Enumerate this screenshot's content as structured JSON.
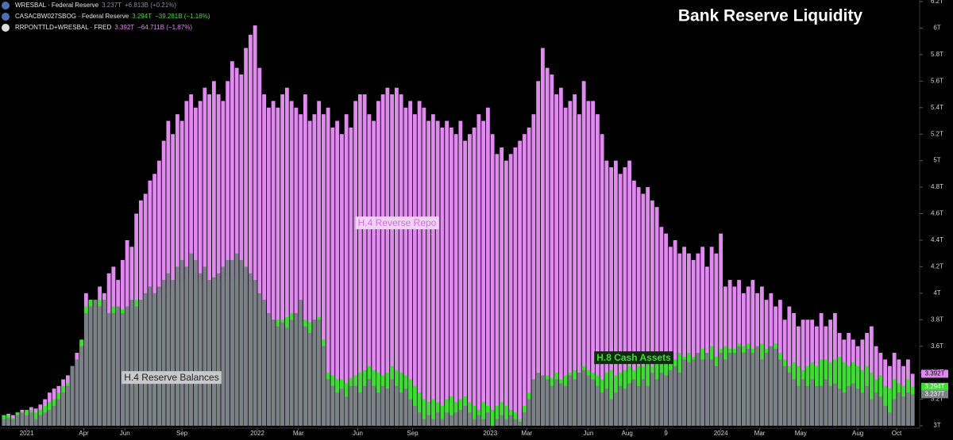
{
  "chart_data": {
    "type": "bar",
    "title": "Bank Reserve Liquidity",
    "ylim": [
      3,
      6.2
    ],
    "yticks": [
      {
        "value": 3,
        "label": "3T"
      },
      {
        "value": 3.2,
        "label": "3.2T"
      },
      {
        "value": 3.4,
        "label": "3.4T"
      },
      {
        "value": 3.6,
        "label": "3.6T"
      },
      {
        "value": 3.8,
        "label": "3.8T"
      },
      {
        "value": 4,
        "label": "4T"
      },
      {
        "value": 4.2,
        "label": "4.2T"
      },
      {
        "value": 4.4,
        "label": "4.4T"
      },
      {
        "value": 4.6,
        "label": "4.6T"
      },
      {
        "value": 4.8,
        "label": "4.8T"
      },
      {
        "value": 5,
        "label": "5T"
      },
      {
        "value": 5.2,
        "label": "5.2T"
      },
      {
        "value": 5.4,
        "label": "5.4T"
      },
      {
        "value": 5.6,
        "label": "5.6T"
      },
      {
        "value": 5.8,
        "label": "5.8T"
      },
      {
        "value": 6,
        "label": "6T"
      },
      {
        "value": 6.2,
        "label": "6.2T"
      }
    ],
    "xlim": [
      0,
      200
    ],
    "xticks": [
      {
        "value": 5.5,
        "label": "2021"
      },
      {
        "value": 18,
        "label": "Apr"
      },
      {
        "value": 27,
        "label": "Jun"
      },
      {
        "value": 39.5,
        "label": "Sep"
      },
      {
        "value": 56,
        "label": "2022"
      },
      {
        "value": 65,
        "label": "Mar"
      },
      {
        "value": 78,
        "label": "Jun"
      },
      {
        "value": 90,
        "label": "Sep"
      },
      {
        "value": 107,
        "label": "2023"
      },
      {
        "value": 115,
        "label": "Mar"
      },
      {
        "value": 128.5,
        "label": "Jun"
      },
      {
        "value": 137,
        "label": "Aug"
      },
      {
        "value": 145.5,
        "label": "9"
      },
      {
        "value": 157.5,
        "label": "2024"
      },
      {
        "value": 166,
        "label": "Mar"
      },
      {
        "value": 175,
        "label": "May"
      },
      {
        "value": 187.5,
        "label": "Aug"
      },
      {
        "value": 196,
        "label": "Oct"
      }
    ],
    "series": [
      {
        "name": "RRPONTTLD+WRESBAL · FRED",
        "legend_value": "3.392T",
        "legend_change": "−64.711B (−1.87%)",
        "label": "H.4 Reverse Repo",
        "price_tag": "3.392T",
        "color": "#e08af0",
        "values": [
          3.08,
          3.09,
          3.08,
          3.1,
          3.12,
          3.1,
          3.14,
          3.13,
          3.16,
          3.2,
          3.25,
          3.28,
          3.3,
          3.35,
          3.38,
          3.45,
          3.55,
          3.62,
          4.0,
          3.95,
          3.9,
          4.05,
          4.0,
          4.15,
          4.2,
          4.1,
          4.25,
          4.4,
          4.35,
          4.6,
          4.7,
          4.75,
          4.85,
          4.9,
          5.0,
          5.15,
          5.3,
          5.2,
          5.35,
          5.3,
          5.45,
          5.5,
          5.4,
          5.45,
          5.55,
          5.5,
          5.6,
          5.5,
          5.45,
          5.6,
          5.75,
          5.7,
          5.65,
          5.85,
          5.95,
          6.02,
          5.7,
          5.5,
          5.4,
          5.45,
          5.4,
          5.5,
          5.55,
          5.45,
          5.4,
          5.35,
          5.5,
          5.3,
          5.35,
          5.45,
          5.35,
          5.4,
          5.25,
          5.3,
          5.2,
          5.35,
          5.25,
          5.45,
          5.5,
          5.5,
          5.35,
          5.3,
          5.45,
          5.5,
          5.55,
          5.5,
          5.55,
          5.5,
          5.4,
          5.45,
          5.35,
          5.45,
          5.4,
          5.3,
          5.35,
          5.3,
          5.25,
          5.3,
          5.25,
          5.2,
          5.3,
          5.15,
          5.2,
          5.25,
          5.35,
          5.3,
          5.4,
          5.2,
          5.05,
          5.1,
          5.0,
          5.05,
          5.1,
          5.15,
          5.2,
          5.25,
          5.35,
          5.6,
          5.85,
          5.7,
          5.65,
          5.5,
          5.55,
          5.4,
          5.45,
          5.5,
          5.35,
          5.6,
          5.45,
          5.45,
          5.35,
          5.2,
          5.0,
          4.95,
          5.0,
          4.9,
          4.95,
          5.0,
          4.85,
          4.8,
          4.75,
          4.8,
          4.7,
          4.65,
          4.5,
          4.45,
          4.35,
          4.4,
          4.3,
          4.35,
          4.3,
          4.25,
          4.3,
          4.35,
          4.2,
          4.35,
          4.3,
          4.45,
          4.05,
          4.1,
          4.05,
          4.1,
          4.0,
          4.05,
          4.1,
          4.0,
          4.05,
          3.95,
          4.0,
          3.9,
          3.95,
          3.8,
          3.9,
          3.85,
          3.75,
          3.8,
          3.8,
          3.8,
          3.75,
          3.85,
          3.75,
          3.8,
          3.85,
          3.7,
          3.65,
          3.7,
          3.65,
          3.6,
          3.65,
          3.7,
          3.75,
          3.6,
          3.55,
          3.5,
          3.45,
          3.55,
          3.5,
          3.45,
          3.5,
          3.392
        ]
      },
      {
        "name": "CASACBW027SBOG · Federal Reserve",
        "legend_value": "3.294T",
        "legend_change": "−39.281B (−1.18%)",
        "label": "H.8 Cash Assets",
        "price_tag": "3.294T",
        "color": "#3fdc34",
        "values": [
          3.08,
          3.08,
          3.06,
          3.1,
          3.1,
          3.12,
          3.12,
          3.1,
          3.12,
          3.15,
          3.18,
          3.2,
          3.25,
          3.3,
          3.32,
          3.4,
          3.5,
          3.65,
          3.9,
          3.95,
          3.95,
          3.95,
          3.9,
          3.85,
          3.9,
          3.9,
          3.88,
          3.9,
          3.92,
          3.95,
          3.95,
          3.98,
          4.0,
          4.0,
          4.0,
          4.02,
          4.05,
          4.0,
          4.05,
          4.1,
          4.1,
          4.12,
          4.1,
          4.08,
          4.1,
          4.05,
          4.1,
          4.1,
          4.08,
          4.12,
          4.1,
          4.12,
          4.1,
          4.08,
          4.05,
          4.0,
          3.98,
          3.9,
          3.82,
          3.8,
          3.8,
          3.8,
          3.82,
          3.85,
          3.82,
          3.85,
          3.8,
          3.78,
          3.8,
          3.82,
          3.65,
          3.4,
          3.38,
          3.35,
          3.35,
          3.32,
          3.36,
          3.38,
          3.4,
          3.42,
          3.45,
          3.42,
          3.4,
          3.38,
          3.4,
          3.45,
          3.42,
          3.4,
          3.38,
          3.35,
          3.3,
          3.25,
          3.2,
          3.18,
          3.2,
          3.18,
          3.15,
          3.2,
          3.22,
          3.18,
          3.2,
          3.22,
          3.18,
          3.15,
          3.12,
          3.18,
          3.15,
          3.12,
          3.15,
          3.18,
          3.15,
          3.12,
          3.1,
          3.05,
          3.15,
          3.25,
          3.35,
          3.38,
          3.35,
          3.38,
          3.36,
          3.4,
          3.35,
          3.38,
          3.4,
          3.42,
          3.4,
          3.45,
          3.42,
          3.4,
          3.38,
          3.35,
          3.4,
          3.42,
          3.38,
          3.4,
          3.42,
          3.45,
          3.42,
          3.45,
          3.45,
          3.48,
          3.45,
          3.5,
          3.48,
          3.5,
          3.52,
          3.5,
          3.55,
          3.52,
          3.55,
          3.52,
          3.55,
          3.58,
          3.55,
          3.6,
          3.52,
          3.58,
          3.6,
          3.58,
          3.58,
          3.62,
          3.6,
          3.62,
          3.58,
          3.6,
          3.62,
          3.58,
          3.6,
          3.62,
          3.55,
          3.5,
          3.45,
          3.48,
          3.45,
          3.42,
          3.45,
          3.48,
          3.45,
          3.5,
          3.5,
          3.48,
          3.5,
          3.52,
          3.48,
          3.45,
          3.48,
          3.45,
          3.42,
          3.45,
          3.4,
          3.35,
          3.38,
          3.3,
          3.28,
          3.35,
          3.32,
          3.3,
          3.35,
          3.294
        ]
      },
      {
        "name": "WRESBAL · Federal Reserve",
        "legend_value": "3.237T",
        "legend_change": "+6.813B (+0.21%)",
        "label": "H.4 Reserve Balances",
        "price_tag": "3.237T",
        "color": "#7d8088",
        "values": [
          3.05,
          3.06,
          3.05,
          3.08,
          3.1,
          3.08,
          3.1,
          3.05,
          3.08,
          3.1,
          3.12,
          3.15,
          3.2,
          3.25,
          3.3,
          3.45,
          3.5,
          3.6,
          3.85,
          3.9,
          3.95,
          3.9,
          3.95,
          3.85,
          3.85,
          3.9,
          3.85,
          3.9,
          3.95,
          3.9,
          3.95,
          4.0,
          4.05,
          4.0,
          4.05,
          4.1,
          4.15,
          4.1,
          4.2,
          4.25,
          4.2,
          4.3,
          4.25,
          4.15,
          4.2,
          4.1,
          4.12,
          4.15,
          4.2,
          4.25,
          4.25,
          4.3,
          4.25,
          4.2,
          4.15,
          4.1,
          4.0,
          3.95,
          3.85,
          3.8,
          3.75,
          3.78,
          3.74,
          3.8,
          3.85,
          3.95,
          3.75,
          3.7,
          3.8,
          3.8,
          3.6,
          3.35,
          3.3,
          3.25,
          3.28,
          3.22,
          3.3,
          3.3,
          3.25,
          3.3,
          3.35,
          3.3,
          3.25,
          3.3,
          3.28,
          3.35,
          3.3,
          3.25,
          3.28,
          3.2,
          3.15,
          3.1,
          3.05,
          3.08,
          3.05,
          3.1,
          3.05,
          3.1,
          3.08,
          3.1,
          3.12,
          3.15,
          3.1,
          3.05,
          3.08,
          3.05,
          3.1,
          3.0,
          3.05,
          3.08,
          3.05,
          3.08,
          3.05,
          3.03,
          3.1,
          3.2,
          3.35,
          3.4,
          3.38,
          3.35,
          3.3,
          3.35,
          3.32,
          3.3,
          3.38,
          3.35,
          3.4,
          3.42,
          3.38,
          3.35,
          3.3,
          3.25,
          3.28,
          3.2,
          3.25,
          3.3,
          3.28,
          3.32,
          3.35,
          3.3,
          3.35,
          3.3,
          3.4,
          3.35,
          3.4,
          3.38,
          3.42,
          3.45,
          3.4,
          3.5,
          3.48,
          3.5,
          3.55,
          3.5,
          3.55,
          3.5,
          3.45,
          3.55,
          3.5,
          3.55,
          3.55,
          3.6,
          3.55,
          3.58,
          3.55,
          3.6,
          3.5,
          3.55,
          3.6,
          3.58,
          3.5,
          3.45,
          3.4,
          3.35,
          3.3,
          3.35,
          3.3,
          3.35,
          3.3,
          3.3,
          3.35,
          3.3,
          3.32,
          3.28,
          3.25,
          3.3,
          3.32,
          3.28,
          3.25,
          3.3,
          3.2,
          3.25,
          3.22,
          3.15,
          3.1,
          3.2,
          3.25,
          3.22,
          3.25,
          3.237
        ]
      }
    ]
  }
}
